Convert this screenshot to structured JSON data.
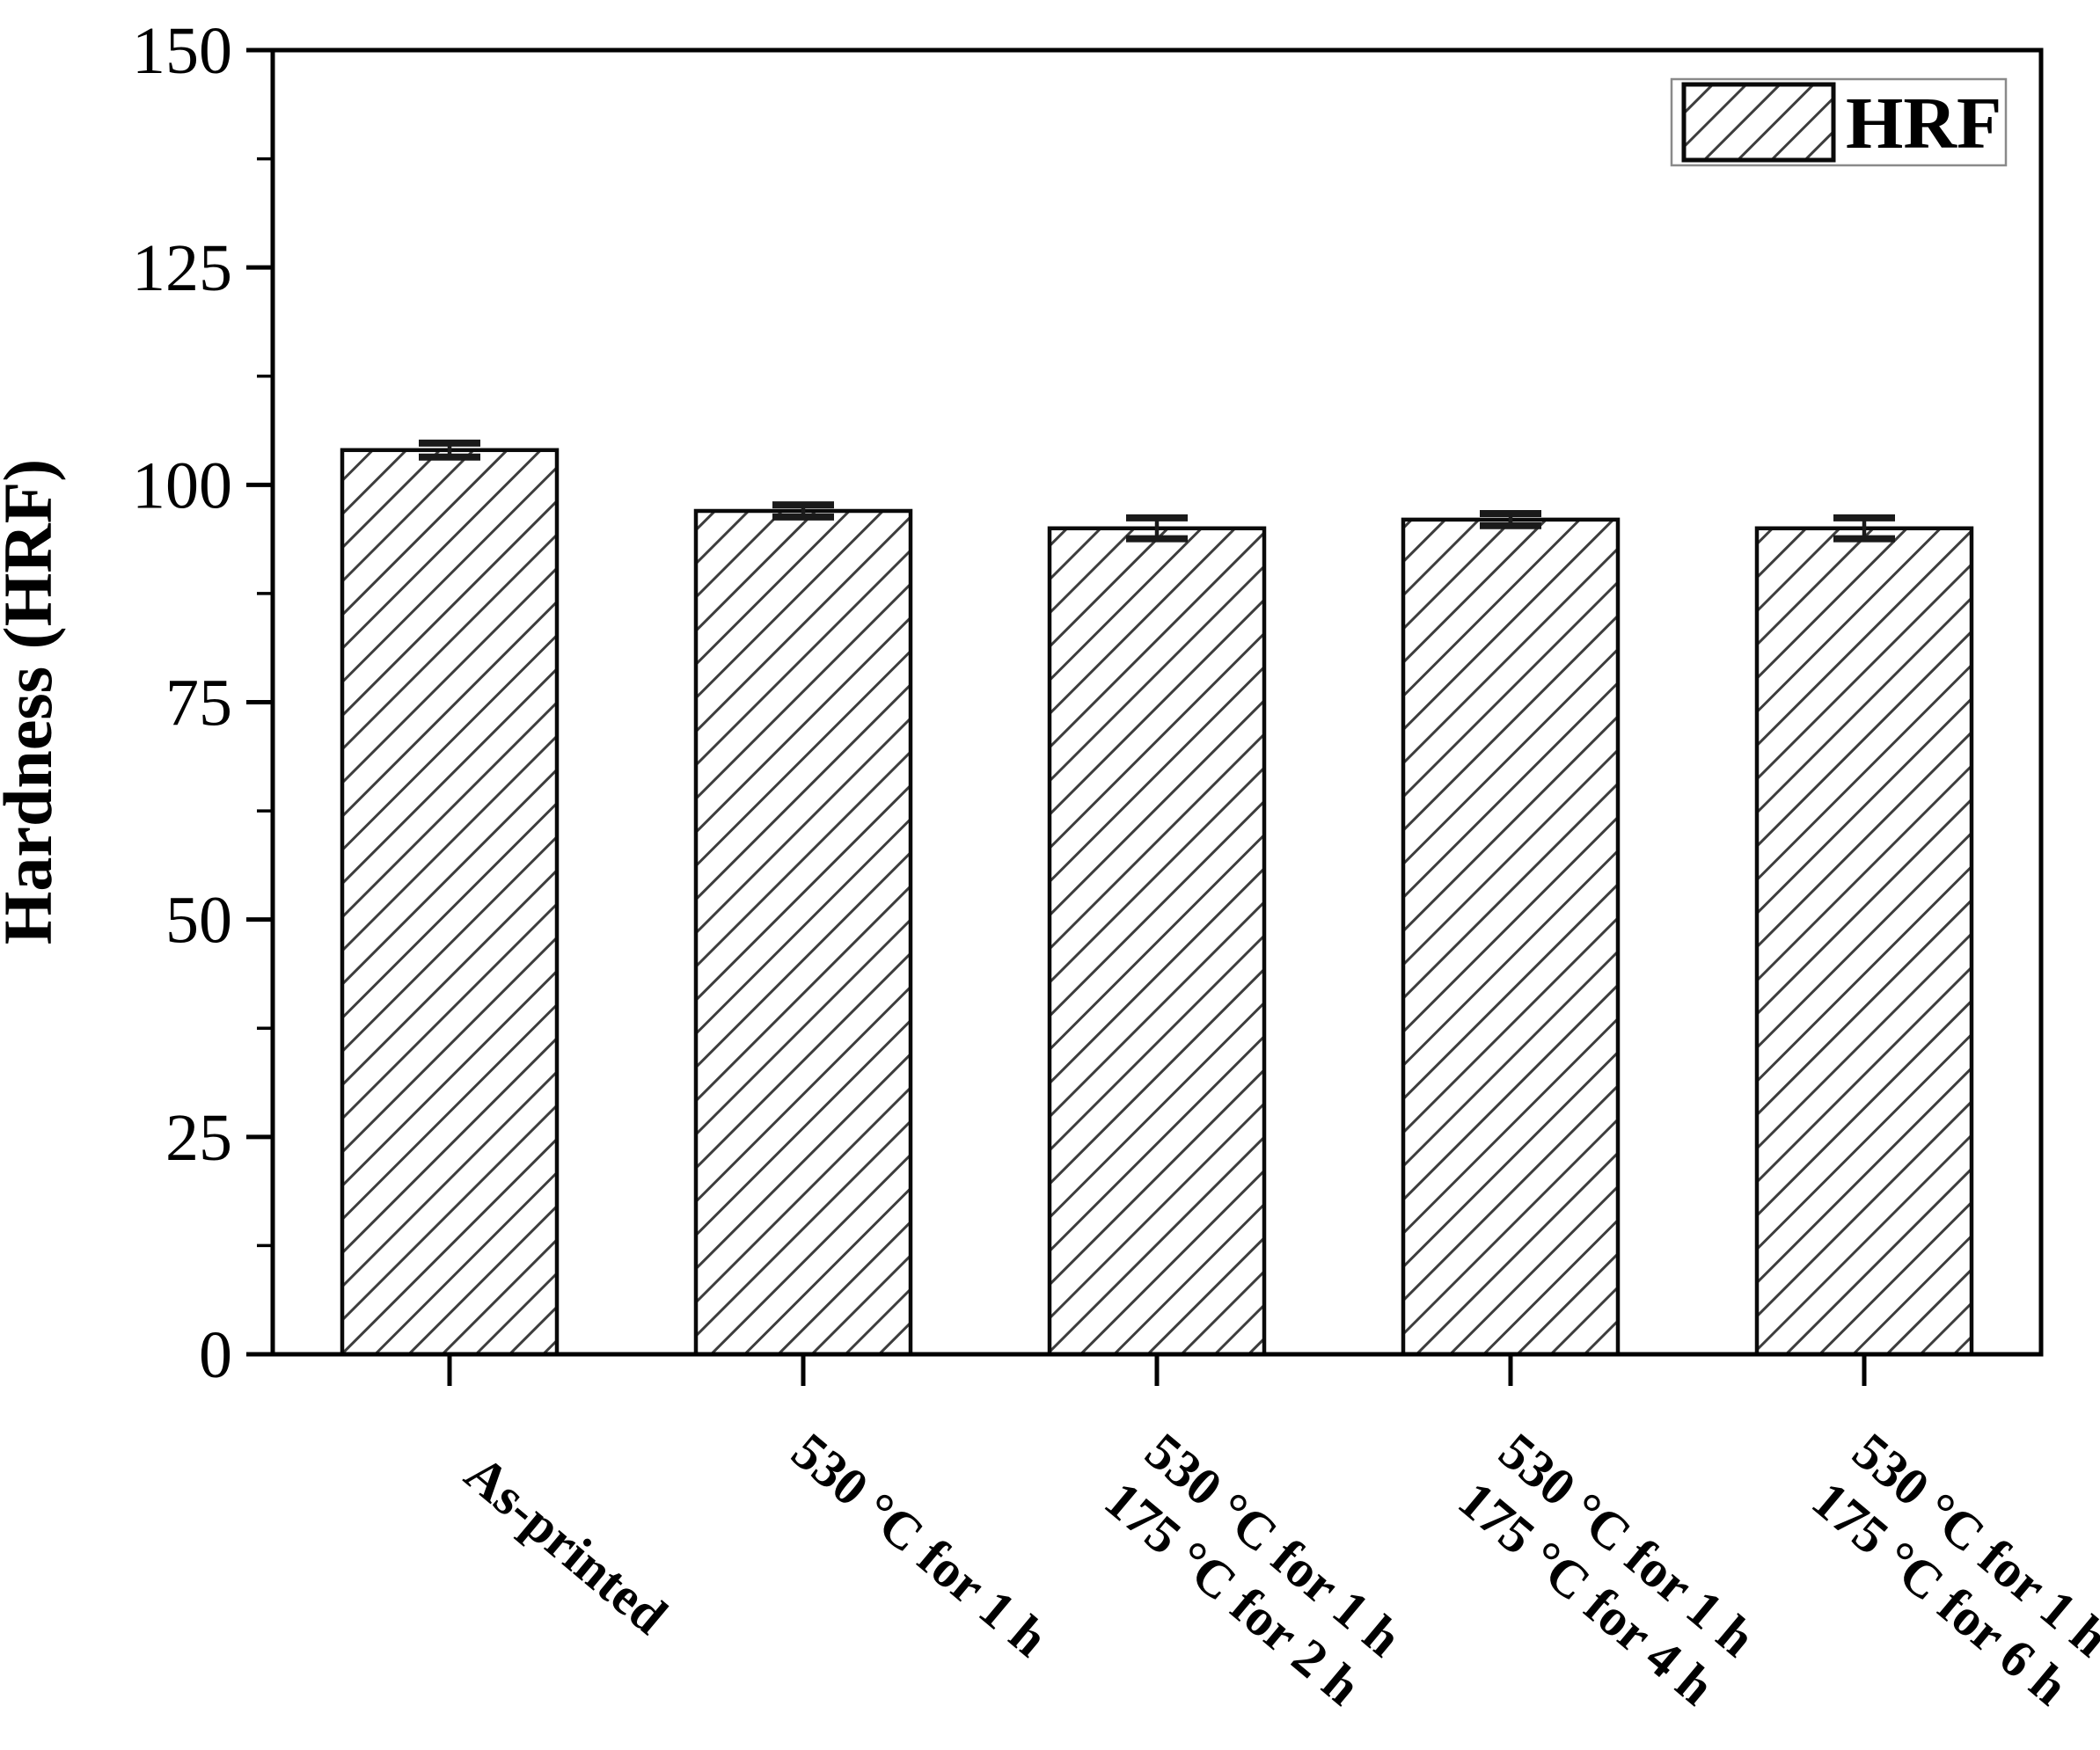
{
  "chart_data": {
    "type": "bar",
    "title": "",
    "ylabel": "Hardness (HRF)",
    "xlabel": "",
    "legend": {
      "label": "HRF",
      "position": "upper-right"
    },
    "ylim": [
      0,
      150
    ],
    "yticks": [
      0,
      25,
      50,
      75,
      100,
      125,
      150
    ],
    "minor_tick_step": 12.5,
    "grid": false,
    "bar_fill": "hatched-diagonal-45",
    "categories": [
      {
        "lines": [
          "As-printed"
        ]
      },
      {
        "lines": [
          "530 °C for 1 h"
        ]
      },
      {
        "lines": [
          "530 °C for 1 h",
          "175 °C for 2 h"
        ]
      },
      {
        "lines": [
          "530 °C for 1 h",
          "175 °C for 4 h"
        ]
      },
      {
        "lines": [
          "530 °C for 1 h",
          "175 °C for 6 h"
        ]
      }
    ],
    "series": [
      {
        "name": "HRF",
        "values": [
          104,
          97,
          95,
          96,
          95
        ],
        "errors": [
          0.8,
          0.7,
          1.2,
          0.7,
          1.2
        ]
      }
    ],
    "colors": {
      "background": "#ffffff",
      "bar_edge": "#0a0a0a",
      "hatch_line": "#3d3d3d",
      "axis": "#000000",
      "text": "#000000",
      "error_bar": "#1a1a1a",
      "legend_border": "#8a8a8a"
    }
  }
}
